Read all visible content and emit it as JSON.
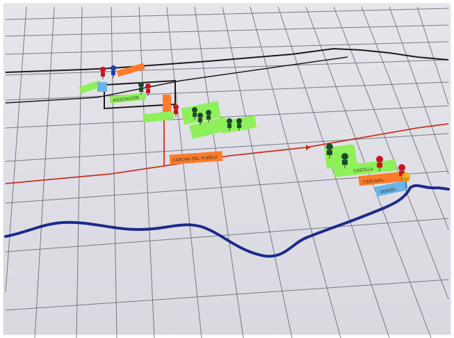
{
  "scene": {
    "subject": "Hand-drawn grid map on paper with colored push pins and sticky-note labels",
    "colors": {
      "paper": "#e9e8ee",
      "grid": "#5f5f6a",
      "blue_line": "#1c2a8c",
      "red_line": "#c8321f",
      "black_line": "#1a1a1a",
      "green_note": "#8ef05a",
      "orange_note": "#ff7a2a",
      "blue_note": "#6ab4e8",
      "pin_red": "#c8141c",
      "pin_green": "#1f4a2a",
      "pin_blue": "#1e3fa0",
      "pin_yellow": "#f0b020"
    },
    "labels": {
      "notes": [
        "CASTILLA",
        "CASCAJAL",
        "VERGEL",
        "CANCHA DEL PUEBLO",
        "ASOCIACIÓN"
      ]
    }
  }
}
